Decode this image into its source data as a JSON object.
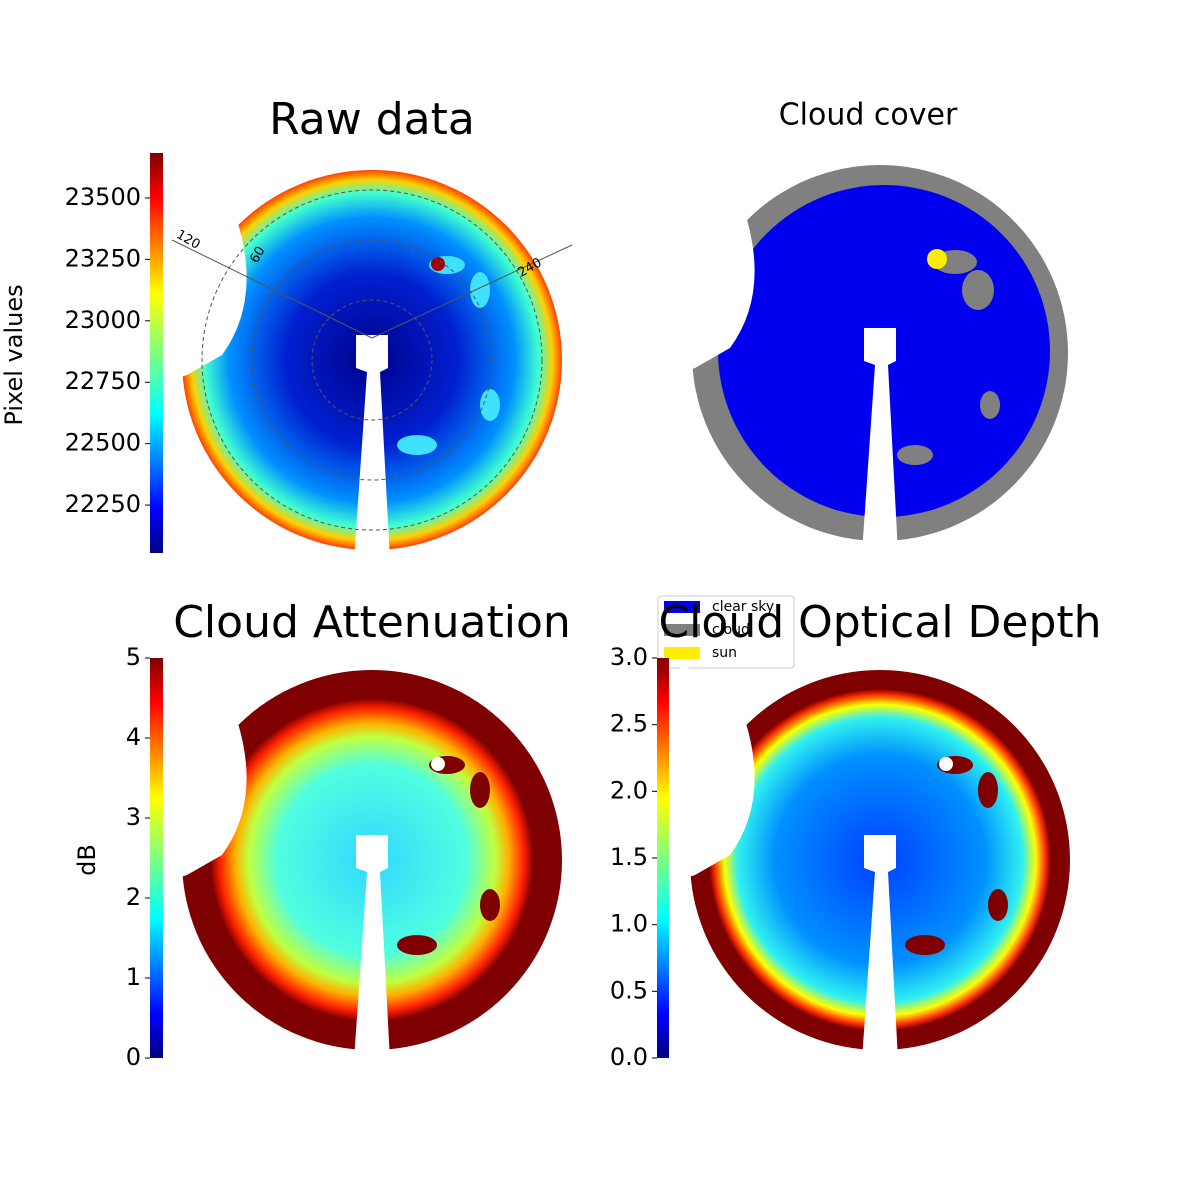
{
  "chart_data": [
    {
      "type": "image",
      "title": "Raw data",
      "colorbar_label": "Pixel values",
      "clim": [
        22055,
        23683
      ],
      "cticks": [
        22250,
        22500,
        22750,
        23000,
        23250,
        23500
      ],
      "grid_labels": [
        "120",
        "60",
        "240"
      ]
    },
    {
      "type": "image",
      "title": "Cloud cover",
      "categories": [
        "clear sky",
        "cloud",
        "sun"
      ],
      "colors": [
        "#0000ee",
        "#808080",
        "#ffee00"
      ]
    },
    {
      "type": "image",
      "title": "Cloud Attenuation",
      "colorbar_label": "dB",
      "clim": [
        0,
        5
      ],
      "cticks": [
        0,
        1,
        2,
        3,
        4,
        5
      ]
    },
    {
      "type": "image",
      "title": "Cloud Optical Depth",
      "clim": [
        0,
        3.0
      ],
      "cticks": [
        {
          "value": 0,
          "label": "0.0"
        },
        0.5,
        {
          "value": 1,
          "label": "1.0"
        },
        1.5,
        {
          "value": 2,
          "label": "2.0"
        },
        2.5,
        {
          "value": 3,
          "label": "3.0"
        }
      ]
    }
  ]
}
